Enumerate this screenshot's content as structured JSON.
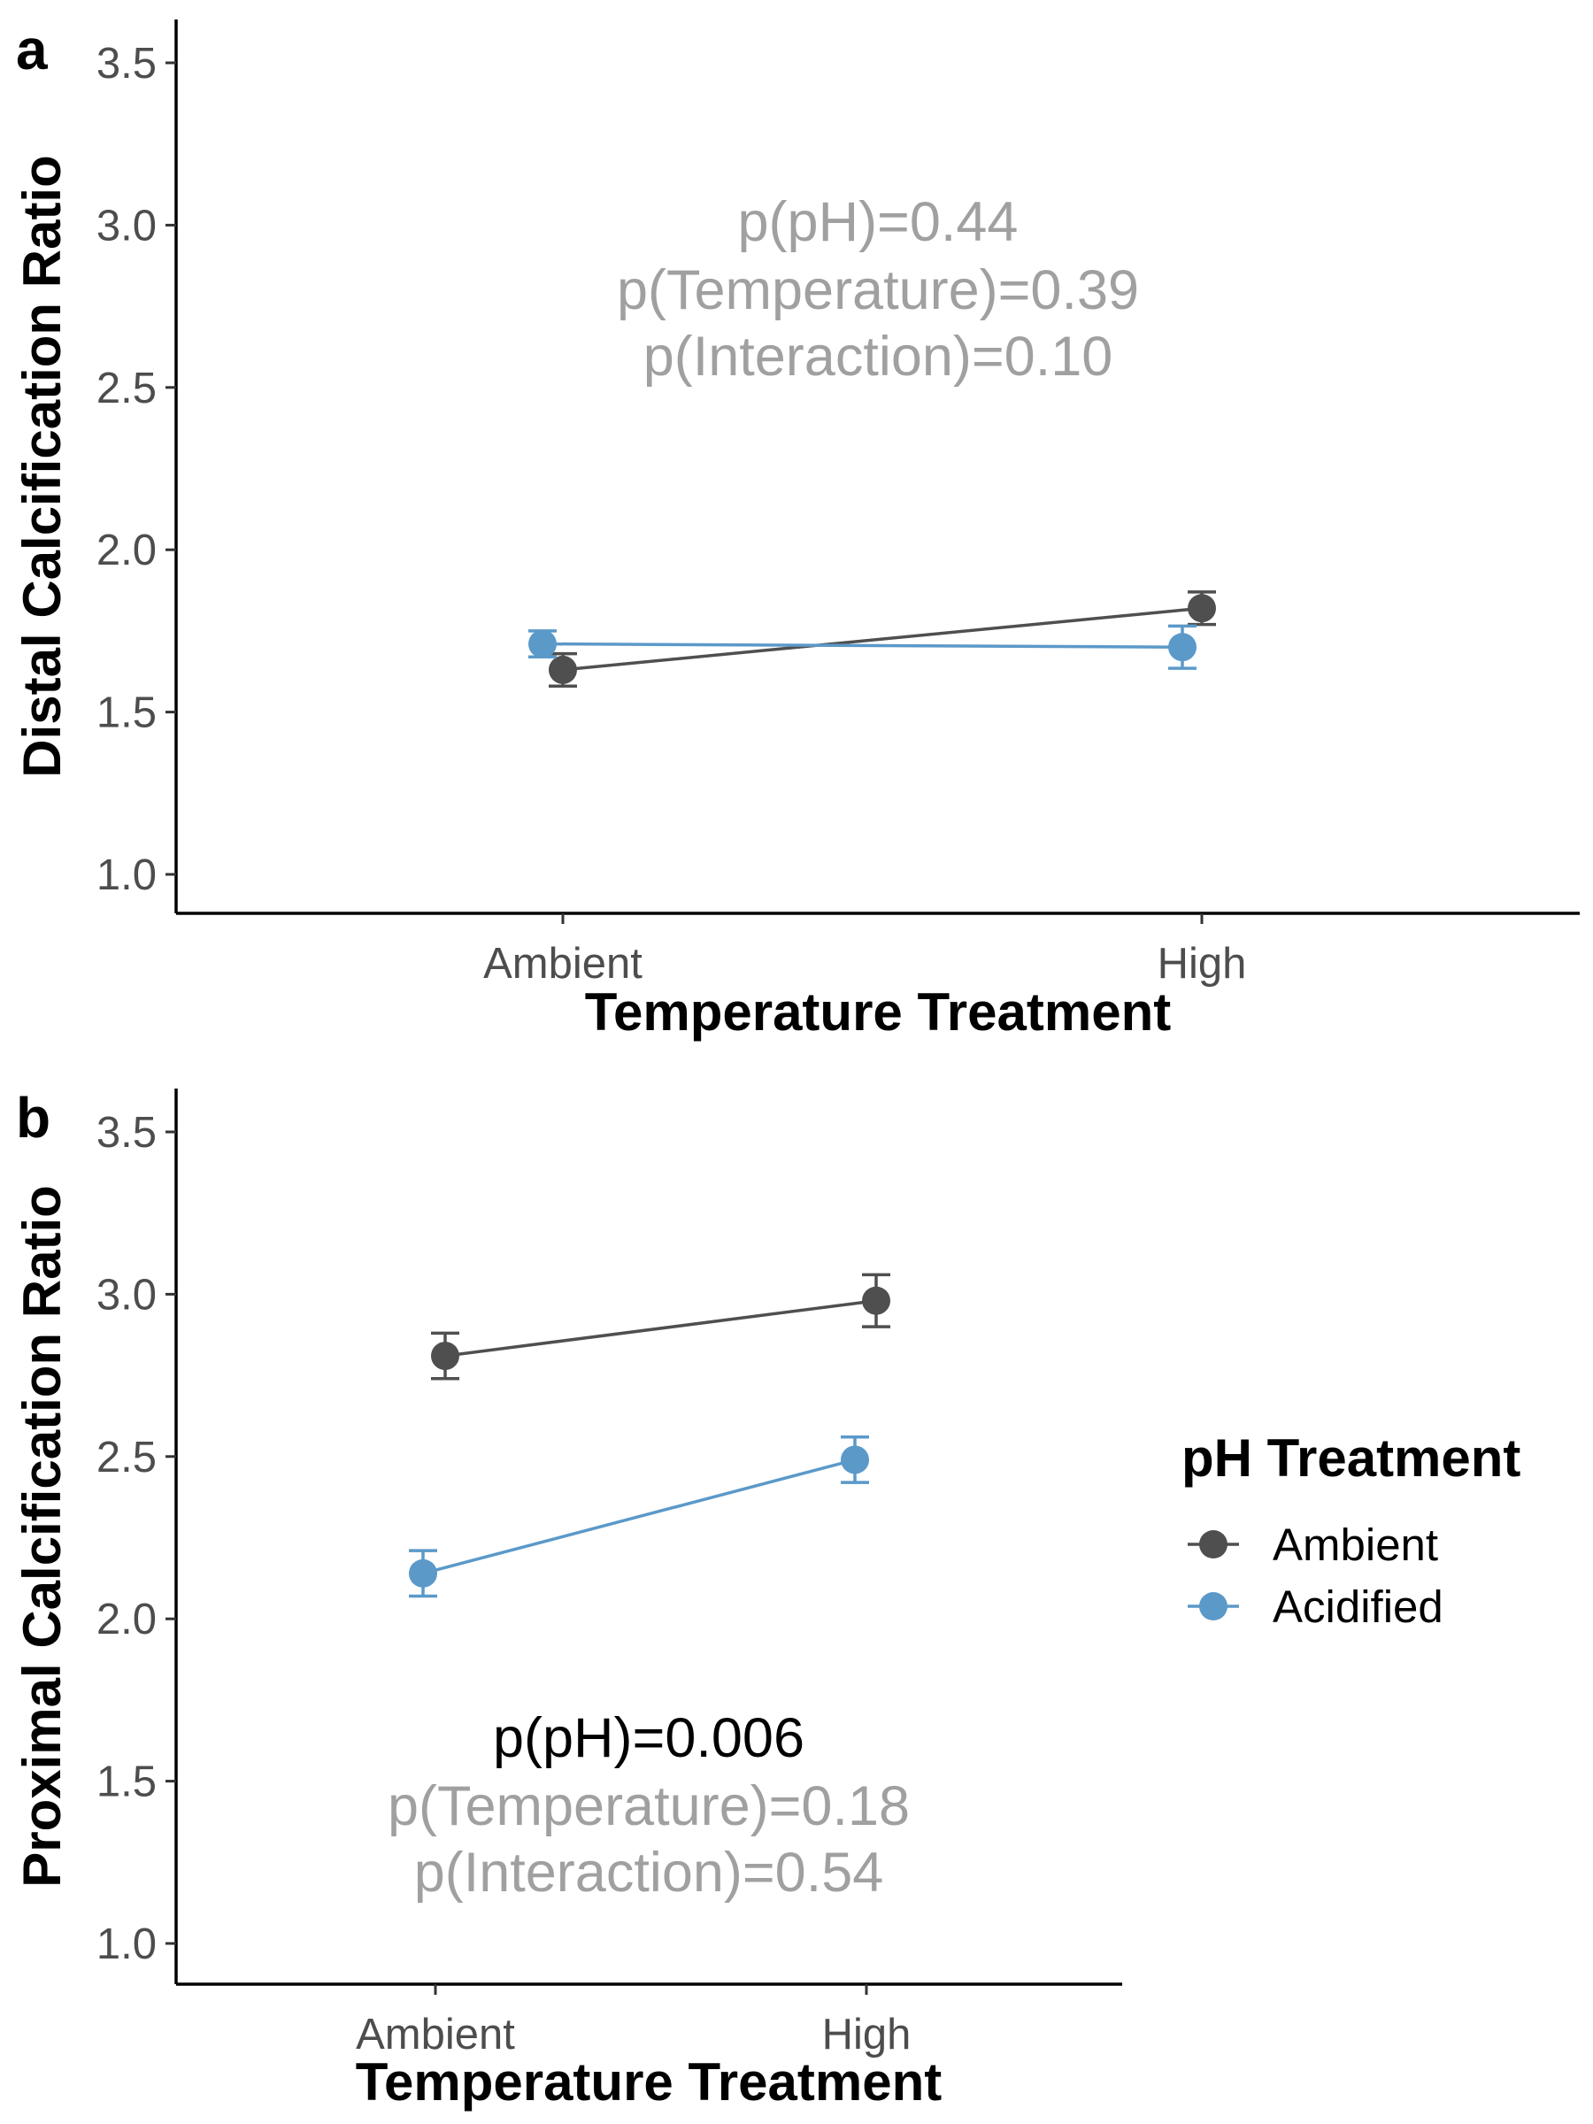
{
  "colors": {
    "ambient": "#4f4f4f",
    "acidified": "#5b99c9",
    "annotation_gray": "#a0a0a0",
    "annotation_black": "#000000"
  },
  "legend": {
    "title": "pH Treatment",
    "items": [
      {
        "label": "Ambient",
        "color": "#4f4f4f"
      },
      {
        "label": "Acidified",
        "color": "#5b99c9"
      }
    ]
  },
  "chart_data": [
    {
      "type": "line",
      "panel_label": "a",
      "xlabel": "Temperature Treatment",
      "ylabel": "Distal Calcification Ratio",
      "categories": [
        "Ambient",
        "High"
      ],
      "ylim": [
        0.9,
        3.6
      ],
      "yticks": [
        "1.0",
        "1.5",
        "2.0",
        "2.5",
        "3.0",
        "3.5"
      ],
      "series": [
        {
          "name": "Ambient",
          "color": "#4f4f4f",
          "values": [
            1.63,
            1.82
          ],
          "error": [
            0.05,
            0.05
          ]
        },
        {
          "name": "Acidified",
          "color": "#5b99c9",
          "values": [
            1.71,
            1.7
          ],
          "error": [
            0.04,
            0.065
          ]
        }
      ],
      "annotations": [
        {
          "text": "p(pH)=0.44",
          "emphasis": false
        },
        {
          "text": "p(Temperature)=0.39",
          "emphasis": false
        },
        {
          "text": "p(Interaction)=0.10",
          "emphasis": false
        }
      ],
      "grid": false
    },
    {
      "type": "line",
      "panel_label": "b",
      "xlabel": "Temperature Treatment",
      "ylabel": "Proximal Calcification Ratio",
      "categories": [
        "Ambient",
        "High"
      ],
      "ylim": [
        0.9,
        3.6
      ],
      "yticks": [
        "1.0",
        "1.5",
        "2.0",
        "2.5",
        "3.0",
        "3.5"
      ],
      "series": [
        {
          "name": "Ambient",
          "color": "#4f4f4f",
          "values": [
            2.81,
            2.98
          ],
          "error": [
            0.07,
            0.08
          ]
        },
        {
          "name": "Acidified",
          "color": "#5b99c9",
          "values": [
            2.14,
            2.49
          ],
          "error": [
            0.07,
            0.07
          ]
        }
      ],
      "annotations": [
        {
          "text": "p(pH)=0.006",
          "emphasis": true
        },
        {
          "text": "p(Temperature)=0.18",
          "emphasis": false
        },
        {
          "text": "p(Interaction)=0.54",
          "emphasis": false
        }
      ],
      "grid": false
    }
  ]
}
